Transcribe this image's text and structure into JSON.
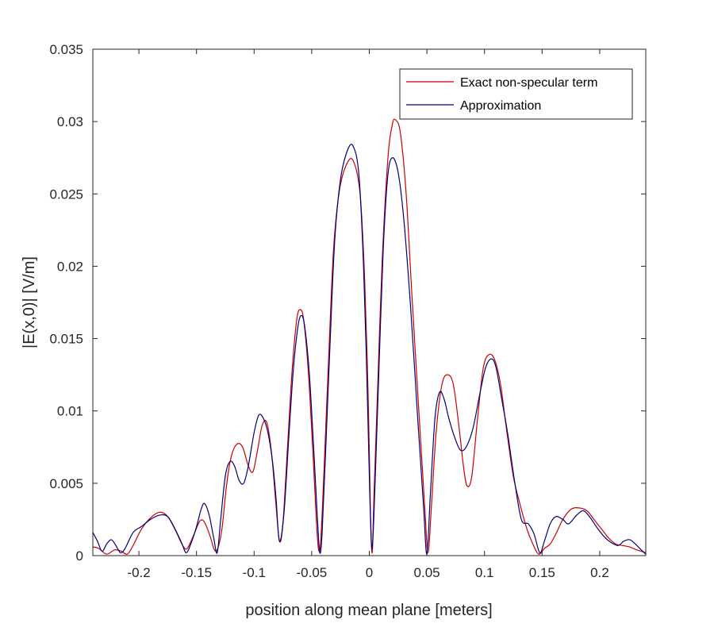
{
  "chart_data": {
    "type": "line",
    "title": "",
    "xlabel": "position along mean plane [meters]",
    "ylabel": "|E(x,0)| [V/m]",
    "xlim": [
      -0.24,
      0.24
    ],
    "ylim": [
      0,
      0.035
    ],
    "x_ticks": [
      -0.2,
      -0.15,
      -0.1,
      -0.05,
      0,
      0.05,
      0.1,
      0.15,
      0.2
    ],
    "x_tick_labels": [
      "-0.2",
      "-0.15",
      "-0.1",
      "-0.05",
      "0",
      "0.05",
      "0.1",
      "0.15",
      "0.2"
    ],
    "y_ticks": [
      0,
      0.005,
      0.01,
      0.015,
      0.02,
      0.025,
      0.03,
      0.035
    ],
    "y_tick_labels": [
      "0",
      "0.005",
      "0.01",
      "0.015",
      "0.02",
      "0.025",
      "0.03",
      "0.035"
    ],
    "grid": false,
    "legend_position": "top-right",
    "series": [
      {
        "name": "Exact non-specular term",
        "color": "#cc0000",
        "points": [
          [
            -0.24,
            0.0006
          ],
          [
            -0.235,
            0.0005
          ],
          [
            -0.228,
            0.0001
          ],
          [
            -0.221,
            0.0004
          ],
          [
            -0.215,
            0.0003
          ],
          [
            -0.21,
            0.0001
          ],
          [
            -0.205,
            0.0007
          ],
          [
            -0.198,
            0.0018
          ],
          [
            -0.19,
            0.0026
          ],
          [
            -0.182,
            0.003
          ],
          [
            -0.175,
            0.0027
          ],
          [
            -0.168,
            0.0017
          ],
          [
            -0.162,
            0.0007
          ],
          [
            -0.158,
            0.0005
          ],
          [
            -0.152,
            0.0015
          ],
          [
            -0.147,
            0.0024
          ],
          [
            -0.143,
            0.0023
          ],
          [
            -0.138,
            0.0013
          ],
          [
            -0.135,
            0.0005
          ],
          [
            -0.132,
            0.0004
          ],
          [
            -0.128,
            0.0018
          ],
          [
            -0.124,
            0.0048
          ],
          [
            -0.12,
            0.0068
          ],
          [
            -0.115,
            0.0077
          ],
          [
            -0.11,
            0.0075
          ],
          [
            -0.105,
            0.0062
          ],
          [
            -0.101,
            0.0058
          ],
          [
            -0.097,
            0.0073
          ],
          [
            -0.093,
            0.009
          ],
          [
            -0.089,
            0.0092
          ],
          [
            -0.085,
            0.0072
          ],
          [
            -0.081,
            0.0035
          ],
          [
            -0.078,
            0.001
          ],
          [
            -0.075,
            0.0022
          ],
          [
            -0.071,
            0.0075
          ],
          [
            -0.067,
            0.0128
          ],
          [
            -0.063,
            0.0163
          ],
          [
            -0.06,
            0.017
          ],
          [
            -0.057,
            0.0163
          ],
          [
            -0.053,
            0.0128
          ],
          [
            -0.049,
            0.0072
          ],
          [
            -0.046,
            0.0025
          ],
          [
            -0.044,
            0.0004
          ],
          [
            -0.042,
            0.0012
          ],
          [
            -0.039,
            0.0065
          ],
          [
            -0.035,
            0.0142
          ],
          [
            -0.031,
            0.0212
          ],
          [
            -0.026,
            0.0252
          ],
          [
            -0.02,
            0.027
          ],
          [
            -0.014,
            0.0273
          ],
          [
            -0.008,
            0.025
          ],
          [
            -0.004,
            0.019
          ],
          [
            -0.001,
            0.011
          ],
          [
            0.001,
            0.003
          ],
          [
            0.0025,
            0.0002
          ],
          [
            0.004,
            0.004
          ],
          [
            0.007,
            0.011
          ],
          [
            0.011,
            0.02
          ],
          [
            0.016,
            0.0273
          ],
          [
            0.02,
            0.0298
          ],
          [
            0.023,
            0.0301
          ],
          [
            0.027,
            0.0292
          ],
          [
            0.032,
            0.025
          ],
          [
            0.037,
            0.018
          ],
          [
            0.043,
            0.01
          ],
          [
            0.048,
            0.0035
          ],
          [
            0.051,
            0.0002
          ],
          [
            0.054,
            0.0035
          ],
          [
            0.058,
            0.0085
          ],
          [
            0.063,
            0.0118
          ],
          [
            0.068,
            0.0125
          ],
          [
            0.073,
            0.0118
          ],
          [
            0.078,
            0.0088
          ],
          [
            0.082,
            0.006
          ],
          [
            0.085,
            0.0048
          ],
          [
            0.089,
            0.0055
          ],
          [
            0.094,
            0.0095
          ],
          [
            0.099,
            0.013
          ],
          [
            0.104,
            0.0139
          ],
          [
            0.109,
            0.0135
          ],
          [
            0.114,
            0.0118
          ],
          [
            0.119,
            0.0088
          ],
          [
            0.125,
            0.0055
          ],
          [
            0.131,
            0.0035
          ],
          [
            0.137,
            0.0018
          ],
          [
            0.142,
            0.0008
          ],
          [
            0.147,
            0.0001
          ],
          [
            0.152,
            0.0005
          ],
          [
            0.157,
            0.0008
          ],
          [
            0.162,
            0.0015
          ],
          [
            0.168,
            0.0025
          ],
          [
            0.175,
            0.0032
          ],
          [
            0.182,
            0.0033
          ],
          [
            0.189,
            0.0031
          ],
          [
            0.195,
            0.0025
          ],
          [
            0.202,
            0.0018
          ],
          [
            0.208,
            0.0012
          ],
          [
            0.214,
            0.0008
          ],
          [
            0.22,
            0.0007
          ],
          [
            0.226,
            0.0006
          ],
          [
            0.232,
            0.0004
          ],
          [
            0.236,
            0.0003
          ],
          [
            0.24,
            0.0002
          ]
        ]
      },
      {
        "name": "Approximation",
        "color": "#000080",
        "points": [
          [
            -0.24,
            0.0016
          ],
          [
            -0.236,
            0.001
          ],
          [
            -0.232,
            0.0003
          ],
          [
            -0.228,
            0.0008
          ],
          [
            -0.224,
            0.0011
          ],
          [
            -0.22,
            0.0007
          ],
          [
            -0.216,
            0.0002
          ],
          [
            -0.212,
            0.0005
          ],
          [
            -0.205,
            0.0016
          ],
          [
            -0.198,
            0.002
          ],
          [
            -0.19,
            0.0025
          ],
          [
            -0.182,
            0.0028
          ],
          [
            -0.175,
            0.0027
          ],
          [
            -0.169,
            0.0019
          ],
          [
            -0.163,
            0.0009
          ],
          [
            -0.159,
            0.0002
          ],
          [
            -0.155,
            0.0008
          ],
          [
            -0.15,
            0.002
          ],
          [
            -0.146,
            0.0032
          ],
          [
            -0.143,
            0.0036
          ],
          [
            -0.139,
            0.0028
          ],
          [
            -0.135,
            0.0012
          ],
          [
            -0.132,
            0.0002
          ],
          [
            -0.129,
            0.0025
          ],
          [
            -0.125,
            0.0055
          ],
          [
            -0.121,
            0.0065
          ],
          [
            -0.117,
            0.0062
          ],
          [
            -0.113,
            0.0052
          ],
          [
            -0.109,
            0.005
          ],
          [
            -0.105,
            0.0062
          ],
          [
            -0.1,
            0.0085
          ],
          [
            -0.096,
            0.0097
          ],
          [
            -0.092,
            0.0095
          ],
          [
            -0.088,
            0.0085
          ],
          [
            -0.084,
            0.0065
          ],
          [
            -0.081,
            0.004
          ],
          [
            -0.078,
            0.001
          ],
          [
            -0.074,
            0.003
          ],
          [
            -0.07,
            0.008
          ],
          [
            -0.066,
            0.0128
          ],
          [
            -0.062,
            0.0158
          ],
          [
            -0.059,
            0.0166
          ],
          [
            -0.056,
            0.0158
          ],
          [
            -0.052,
            0.0125
          ],
          [
            -0.048,
            0.007
          ],
          [
            -0.045,
            0.0025
          ],
          [
            -0.043,
            0.0002
          ],
          [
            -0.041,
            0.0015
          ],
          [
            -0.038,
            0.007
          ],
          [
            -0.034,
            0.0148
          ],
          [
            -0.03,
            0.0218
          ],
          [
            -0.025,
            0.026
          ],
          [
            -0.019,
            0.028
          ],
          [
            -0.014,
            0.0283
          ],
          [
            -0.009,
            0.0263
          ],
          [
            -0.005,
            0.02
          ],
          [
            -0.002,
            0.012
          ],
          [
            0.0005,
            0.004
          ],
          [
            0.0025,
            0.0005
          ],
          [
            0.005,
            0.005
          ],
          [
            0.008,
            0.012
          ],
          [
            0.012,
            0.021
          ],
          [
            0.016,
            0.0262
          ],
          [
            0.02,
            0.0275
          ],
          [
            0.025,
            0.0265
          ],
          [
            0.03,
            0.0232
          ],
          [
            0.036,
            0.017
          ],
          [
            0.042,
            0.0095
          ],
          [
            0.047,
            0.0035
          ],
          [
            0.05,
            0.0001
          ],
          [
            0.053,
            0.0042
          ],
          [
            0.057,
            0.0095
          ],
          [
            0.061,
            0.0113
          ],
          [
            0.065,
            0.0108
          ],
          [
            0.069,
            0.0095
          ],
          [
            0.074,
            0.0082
          ],
          [
            0.079,
            0.0073
          ],
          [
            0.084,
            0.0075
          ],
          [
            0.09,
            0.0088
          ],
          [
            0.096,
            0.0112
          ],
          [
            0.101,
            0.013
          ],
          [
            0.106,
            0.0136
          ],
          [
            0.11,
            0.013
          ],
          [
            0.115,
            0.0108
          ],
          [
            0.12,
            0.0085
          ],
          [
            0.126,
            0.0052
          ],
          [
            0.132,
            0.0025
          ],
          [
            0.138,
            0.0022
          ],
          [
            0.143,
            0.0015
          ],
          [
            0.148,
            0.0002
          ],
          [
            0.152,
            0.001
          ],
          [
            0.157,
            0.0022
          ],
          [
            0.162,
            0.0027
          ],
          [
            0.168,
            0.0025
          ],
          [
            0.173,
            0.0022
          ],
          [
            0.18,
            0.0028
          ],
          [
            0.186,
            0.0031
          ],
          [
            0.192,
            0.0026
          ],
          [
            0.198,
            0.0019
          ],
          [
            0.204,
            0.0013
          ],
          [
            0.21,
            0.0009
          ],
          [
            0.216,
            0.0007
          ],
          [
            0.221,
            0.001
          ],
          [
            0.226,
            0.0011
          ],
          [
            0.231,
            0.0008
          ],
          [
            0.236,
            0.0004
          ],
          [
            0.24,
            0.0001
          ]
        ]
      }
    ]
  }
}
